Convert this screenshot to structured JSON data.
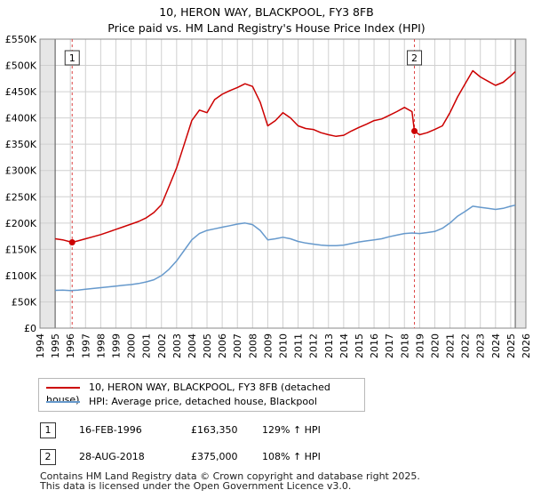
{
  "chart_data": {
    "type": "line",
    "title": "10, HERON WAY, BLACKPOOL, FY3 8FB",
    "subtitle": "Price paid vs. HM Land Registry's House Price Index (HPI)",
    "xlim": [
      1994,
      2026
    ],
    "ylim": [
      0,
      550000
    ],
    "x_ticks": [
      "1994",
      "1995",
      "1996",
      "1997",
      "1998",
      "1999",
      "2000",
      "2001",
      "2002",
      "2003",
      "2004",
      "2005",
      "2006",
      "2007",
      "2008",
      "2009",
      "2010",
      "2011",
      "2012",
      "2013",
      "2014",
      "2015",
      "2016",
      "2017",
      "2018",
      "2019",
      "2020",
      "2021",
      "2022",
      "2023",
      "2024",
      "2025",
      "2026"
    ],
    "y_ticks": [
      {
        "value": 0,
        "label": "£0"
      },
      {
        "value": 50000,
        "label": "£50K"
      },
      {
        "value": 100000,
        "label": "£100K"
      },
      {
        "value": 150000,
        "label": "£150K"
      },
      {
        "value": 200000,
        "label": "£200K"
      },
      {
        "value": 250000,
        "label": "£250K"
      },
      {
        "value": 300000,
        "label": "£300K"
      },
      {
        "value": 350000,
        "label": "£350K"
      },
      {
        "value": 400000,
        "label": "£400K"
      },
      {
        "value": 450000,
        "label": "£450K"
      },
      {
        "value": 500000,
        "label": "£500K"
      },
      {
        "value": 550000,
        "label": "£550K"
      }
    ],
    "data_range": [
      1995.0,
      2025.3
    ],
    "grid": true,
    "series": [
      {
        "name": "10, HERON WAY, BLACKPOOL, FY3 8FB (detached house)",
        "color": "#cc0000",
        "points": [
          [
            1995.0,
            170000
          ],
          [
            1995.5,
            168000
          ],
          [
            1996.12,
            163350
          ],
          [
            1996.5,
            166000
          ],
          [
            1997.0,
            170000
          ],
          [
            1997.5,
            174000
          ],
          [
            1998.0,
            178000
          ],
          [
            1998.5,
            183000
          ],
          [
            1999.0,
            188000
          ],
          [
            1999.5,
            193000
          ],
          [
            2000.0,
            198000
          ],
          [
            2000.5,
            203000
          ],
          [
            2001.0,
            210000
          ],
          [
            2001.5,
            220000
          ],
          [
            2002.0,
            235000
          ],
          [
            2002.5,
            270000
          ],
          [
            2003.0,
            305000
          ],
          [
            2003.5,
            350000
          ],
          [
            2004.0,
            395000
          ],
          [
            2004.5,
            415000
          ],
          [
            2005.0,
            410000
          ],
          [
            2005.5,
            435000
          ],
          [
            2006.0,
            445000
          ],
          [
            2006.5,
            452000
          ],
          [
            2007.0,
            458000
          ],
          [
            2007.5,
            465000
          ],
          [
            2008.0,
            460000
          ],
          [
            2008.5,
            430000
          ],
          [
            2009.0,
            385000
          ],
          [
            2009.5,
            395000
          ],
          [
            2010.0,
            410000
          ],
          [
            2010.5,
            400000
          ],
          [
            2011.0,
            385000
          ],
          [
            2011.5,
            380000
          ],
          [
            2012.0,
            378000
          ],
          [
            2012.5,
            372000
          ],
          [
            2013.0,
            368000
          ],
          [
            2013.5,
            365000
          ],
          [
            2014.0,
            367000
          ],
          [
            2014.5,
            375000
          ],
          [
            2015.0,
            382000
          ],
          [
            2015.5,
            388000
          ],
          [
            2016.0,
            395000
          ],
          [
            2016.5,
            398000
          ],
          [
            2017.0,
            405000
          ],
          [
            2017.5,
            412000
          ],
          [
            2018.0,
            420000
          ],
          [
            2018.5,
            412000
          ],
          [
            2018.66,
            375000
          ],
          [
            2019.0,
            368000
          ],
          [
            2019.5,
            372000
          ],
          [
            2020.0,
            378000
          ],
          [
            2020.5,
            385000
          ],
          [
            2021.0,
            410000
          ],
          [
            2021.5,
            440000
          ],
          [
            2022.0,
            465000
          ],
          [
            2022.5,
            490000
          ],
          [
            2023.0,
            478000
          ],
          [
            2023.5,
            470000
          ],
          [
            2024.0,
            462000
          ],
          [
            2024.5,
            468000
          ],
          [
            2025.0,
            480000
          ],
          [
            2025.3,
            488000
          ]
        ]
      },
      {
        "name": "HPI: Average price, detached house, Blackpool",
        "color": "#6699cc",
        "points": [
          [
            1995.0,
            72000
          ],
          [
            1995.5,
            72500
          ],
          [
            1996.0,
            71500
          ],
          [
            1996.5,
            72500
          ],
          [
            1997.0,
            74000
          ],
          [
            1997.5,
            75500
          ],
          [
            1998.0,
            77000
          ],
          [
            1998.5,
            78500
          ],
          [
            1999.0,
            80000
          ],
          [
            1999.5,
            81500
          ],
          [
            2000.0,
            83000
          ],
          [
            2000.5,
            85000
          ],
          [
            2001.0,
            88000
          ],
          [
            2001.5,
            92000
          ],
          [
            2002.0,
            100000
          ],
          [
            2002.5,
            112000
          ],
          [
            2003.0,
            128000
          ],
          [
            2003.5,
            148000
          ],
          [
            2004.0,
            168000
          ],
          [
            2004.5,
            180000
          ],
          [
            2005.0,
            186000
          ],
          [
            2005.5,
            189000
          ],
          [
            2006.0,
            192000
          ],
          [
            2006.5,
            195000
          ],
          [
            2007.0,
            198000
          ],
          [
            2007.5,
            200000
          ],
          [
            2008.0,
            197000
          ],
          [
            2008.5,
            186000
          ],
          [
            2009.0,
            168000
          ],
          [
            2009.5,
            170000
          ],
          [
            2010.0,
            173000
          ],
          [
            2010.5,
            170000
          ],
          [
            2011.0,
            165000
          ],
          [
            2011.5,
            162000
          ],
          [
            2012.0,
            160000
          ],
          [
            2012.5,
            158000
          ],
          [
            2013.0,
            157000
          ],
          [
            2013.5,
            157000
          ],
          [
            2014.0,
            158000
          ],
          [
            2014.5,
            161000
          ],
          [
            2015.0,
            164000
          ],
          [
            2015.5,
            166000
          ],
          [
            2016.0,
            168000
          ],
          [
            2016.5,
            170000
          ],
          [
            2017.0,
            174000
          ],
          [
            2017.5,
            177000
          ],
          [
            2018.0,
            180000
          ],
          [
            2018.5,
            181000
          ],
          [
            2019.0,
            180000
          ],
          [
            2019.5,
            182000
          ],
          [
            2020.0,
            184000
          ],
          [
            2020.5,
            190000
          ],
          [
            2021.0,
            200000
          ],
          [
            2021.5,
            213000
          ],
          [
            2022.0,
            222000
          ],
          [
            2022.5,
            232000
          ],
          [
            2023.0,
            230000
          ],
          [
            2023.5,
            228000
          ],
          [
            2024.0,
            226000
          ],
          [
            2024.5,
            228000
          ],
          [
            2025.0,
            232000
          ],
          [
            2025.3,
            234000
          ]
        ]
      }
    ],
    "markers": [
      {
        "label": "1",
        "x": 1996.12,
        "value": 163350
      },
      {
        "label": "2",
        "x": 2018.66,
        "value": 375000
      }
    ]
  },
  "legend": {
    "items": [
      {
        "label": "10, HERON WAY, BLACKPOOL, FY3 8FB (detached house)",
        "color": "#cc0000"
      },
      {
        "label": "HPI: Average price, detached house, Blackpool",
        "color": "#6699cc"
      }
    ]
  },
  "sales": [
    {
      "num": "1",
      "date": "16-FEB-1996",
      "price": "£163,350",
      "hpi": "129% ↑ HPI"
    },
    {
      "num": "2",
      "date": "28-AUG-2018",
      "price": "£375,000",
      "hpi": "108% ↑ HPI"
    }
  ],
  "footer": {
    "line1": "Contains HM Land Registry data © Crown copyright and database right 2025.",
    "line2": "This data is licensed under the Open Government Licence v3.0."
  }
}
